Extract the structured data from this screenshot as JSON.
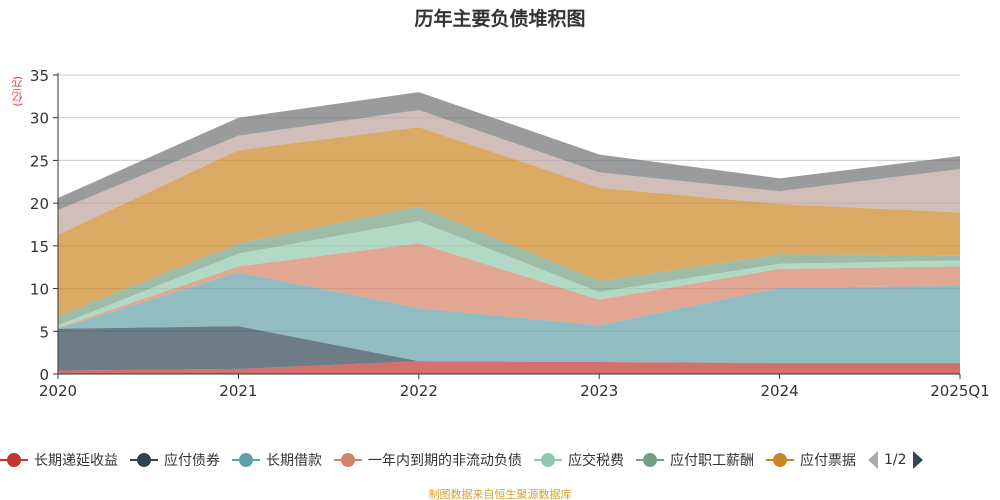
{
  "chart_data": {
    "type": "area",
    "stacked": true,
    "title": "历年主要负债堆积图",
    "ylabel": "(亿元)",
    "xlabel": "",
    "ylim": [
      0,
      35
    ],
    "yticks": [
      0,
      5,
      10,
      15,
      20,
      25,
      30,
      35
    ],
    "grid": true,
    "categories": [
      "2020",
      "2021",
      "2022",
      "2023",
      "2024",
      "2025Q1"
    ],
    "series": [
      {
        "name": "长期递延收益",
        "color": "#c23531",
        "values": [
          0.4,
          0.6,
          1.5,
          1.4,
          1.3,
          1.3
        ]
      },
      {
        "name": "应付债券",
        "color": "#2f4554",
        "values": [
          4.9,
          5.0,
          0,
          0,
          0,
          0
        ]
      },
      {
        "name": "长期借款",
        "color": "#61a0a8",
        "values": [
          0,
          6.3,
          6.2,
          4.3,
          8.8,
          9.0
        ]
      },
      {
        "name": "一年内到期的非流动负债",
        "color": "#d48265",
        "values": [
          0.1,
          0.7,
          7.6,
          3.0,
          2.2,
          2.3
        ]
      },
      {
        "name": "应交税费",
        "color": "#91c7ae",
        "values": [
          0.3,
          1.5,
          2.6,
          0.9,
          0.6,
          0.7
        ]
      },
      {
        "name": "应付职工薪酬",
        "color": "#749f83",
        "values": [
          1.1,
          1.2,
          1.7,
          1.3,
          1.1,
          0.6
        ]
      },
      {
        "name": "应付票据",
        "color": "#ca8622",
        "values": [
          9.5,
          10.9,
          9.3,
          10.9,
          5.9,
          5.0
        ]
      },
      {
        "name": "",
        "color": "#bda29a",
        "values": [
          2.9,
          1.7,
          2.0,
          1.8,
          1.5,
          5.1
        ]
      },
      {
        "name": "",
        "color": "#6e7074",
        "values": [
          1.4,
          2.1,
          2.1,
          2.1,
          1.5,
          1.5
        ]
      }
    ],
    "legend_position": "bottom",
    "legend_page": "1/2"
  },
  "source": "制图数据来自恒生聚源数据库"
}
